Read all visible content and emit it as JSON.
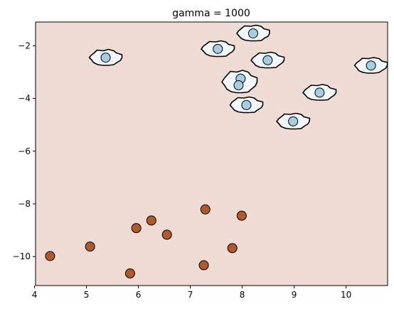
{
  "chart_data": {
    "type": "scatter",
    "title": "gamma = 1000",
    "xlabel": "",
    "ylabel": "",
    "xlim": [
      4.02,
      10.8
    ],
    "ylim": [
      -11.1,
      -1.1
    ],
    "x_ticks": [
      4,
      5,
      6,
      7,
      8,
      9,
      10
    ],
    "y_ticks": [
      -10,
      -8,
      -6,
      -4,
      -2
    ],
    "grid": false,
    "background_color": "#efdcd4",
    "contour_fill_color": "#f2f8fb",
    "series": [
      {
        "color": "#a6cee3",
        "points": [
          {
            "x": 5.37,
            "y": -2.45
          },
          {
            "x": 7.53,
            "y": -2.12
          },
          {
            "x": 8.21,
            "y": -1.53
          },
          {
            "x": 8.49,
            "y": -2.55
          },
          {
            "x": 7.97,
            "y": -3.25
          },
          {
            "x": 7.93,
            "y": -3.5
          },
          {
            "x": 8.08,
            "y": -4.25
          },
          {
            "x": 8.98,
            "y": -4.87
          },
          {
            "x": 9.49,
            "y": -3.78
          },
          {
            "x": 10.48,
            "y": -2.75
          }
        ]
      },
      {
        "color": "#b15928",
        "points": [
          {
            "x": 4.3,
            "y": -9.98
          },
          {
            "x": 5.07,
            "y": -9.62
          },
          {
            "x": 5.84,
            "y": -10.64
          },
          {
            "x": 5.96,
            "y": -8.92
          },
          {
            "x": 6.25,
            "y": -8.63
          },
          {
            "x": 6.55,
            "y": -9.17
          },
          {
            "x": 7.29,
            "y": -8.21
          },
          {
            "x": 7.26,
            "y": -10.33
          },
          {
            "x": 7.81,
            "y": -9.68
          },
          {
            "x": 7.99,
            "y": -8.45
          }
        ]
      }
    ]
  }
}
